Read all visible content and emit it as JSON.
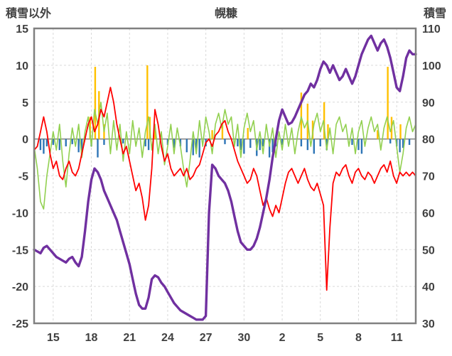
{
  "header": {
    "left_label": "積雪以外",
    "title": "幌糠",
    "right_label": "積雪"
  },
  "chart_data": {
    "type": "line",
    "title": "幌糠",
    "grid": true,
    "legend_position": "none",
    "colors": {
      "grid": "#d9d9d9",
      "zero_line": "#808080",
      "border": "#808080",
      "tick_text": "#404040",
      "background": "#ffffff"
    },
    "left_axis": {
      "label": "積雪以外",
      "min": -25,
      "max": 15,
      "ticks": [
        15,
        10,
        5,
        0,
        -5,
        -10,
        -15,
        -20,
        -25
      ]
    },
    "right_axis": {
      "label": "積雪",
      "min": 30,
      "max": 110,
      "ticks": [
        110,
        100,
        90,
        80,
        70,
        60,
        50,
        40,
        30
      ]
    },
    "x_axis": {
      "min": 13.5,
      "max": 43.5,
      "ticks": [
        {
          "d": 15,
          "label": "15"
        },
        {
          "d": 18,
          "label": "18"
        },
        {
          "d": 21,
          "label": "21"
        },
        {
          "d": 24,
          "label": "24"
        },
        {
          "d": 27,
          "label": "27"
        },
        {
          "d": 30,
          "label": "30"
        },
        {
          "d": 33,
          "label": "2"
        },
        {
          "d": 36,
          "label": "5"
        },
        {
          "d": 39,
          "label": "8"
        },
        {
          "d": 42,
          "label": "11"
        }
      ]
    },
    "bar_series": [
      {
        "name": "blue-bars",
        "axis": "left",
        "color": "#2e75b6",
        "points": [
          [
            14.0,
            -1.5
          ],
          [
            14.25,
            -2
          ],
          [
            14.5,
            -1
          ],
          [
            15.0,
            -0.8
          ],
          [
            15.5,
            -1.5
          ],
          [
            16.0,
            -1
          ],
          [
            16.5,
            -0.7
          ],
          [
            17.0,
            -1.8
          ],
          [
            17.25,
            -2.2
          ],
          [
            18.0,
            -1
          ],
          [
            18.5,
            -2.5
          ],
          [
            19.0,
            -0.8
          ],
          [
            20.5,
            -0.6
          ],
          [
            22.25,
            -1
          ],
          [
            22.5,
            -1.5
          ],
          [
            24.0,
            -0.8
          ],
          [
            24.5,
            -1.2
          ],
          [
            25.0,
            -1
          ],
          [
            25.5,
            -1.8
          ],
          [
            26.0,
            -2.2
          ],
          [
            26.25,
            -1.5
          ],
          [
            26.5,
            -2.5
          ],
          [
            27.0,
            -1
          ],
          [
            28.5,
            -0.7
          ],
          [
            29.5,
            -1
          ],
          [
            29.75,
            -1.5
          ],
          [
            30.0,
            -2
          ],
          [
            30.5,
            -1.2
          ],
          [
            31.0,
            -2.3
          ],
          [
            31.25,
            -1.5
          ],
          [
            31.5,
            -1
          ],
          [
            32.0,
            -2.5
          ],
          [
            32.25,
            -1.8
          ],
          [
            32.5,
            -1
          ],
          [
            33.0,
            -0.8
          ],
          [
            34.5,
            -1
          ],
          [
            35.0,
            -1.5
          ],
          [
            35.5,
            -2
          ],
          [
            36.0,
            -1
          ],
          [
            36.5,
            -1.5
          ],
          [
            38.5,
            -0.8
          ],
          [
            39.0,
            -1.5
          ],
          [
            39.25,
            -2
          ],
          [
            41.5,
            -0.6
          ],
          [
            42.0,
            -1
          ],
          [
            42.25,
            -1.8
          ],
          [
            42.5,
            -1.2
          ],
          [
            43.0,
            -0.8
          ]
        ]
      },
      {
        "name": "orange-bars",
        "axis": "left",
        "color": "#ffc000",
        "points": [
          [
            17.9,
            3
          ],
          [
            18.3,
            9.8
          ],
          [
            18.6,
            6.5
          ],
          [
            19.0,
            2
          ],
          [
            22.4,
            10
          ],
          [
            22.6,
            3
          ],
          [
            23.0,
            1.5
          ],
          [
            27.5,
            1.2
          ],
          [
            28.3,
            2
          ],
          [
            30.3,
            1.5
          ],
          [
            34.5,
            6.3
          ],
          [
            35.0,
            4.8
          ],
          [
            35.4,
            2.5
          ],
          [
            36.3,
            5
          ],
          [
            36.6,
            2
          ],
          [
            40.5,
            1.2
          ],
          [
            41.3,
            9.8
          ],
          [
            41.6,
            3
          ],
          [
            42.3,
            2
          ]
        ]
      }
    ],
    "series": [
      {
        "name": "green-line",
        "axis": "left",
        "color": "#92d050",
        "width": 1.6,
        "start": 13.5,
        "step": 0.25,
        "values": [
          -1,
          -4,
          -8.5,
          -9.5,
          -5,
          -2,
          1,
          -1.5,
          2,
          -3,
          -6.5,
          -2,
          1.5,
          -1,
          2,
          -2.5,
          1,
          3,
          -1,
          4,
          2,
          5,
          1,
          3.5,
          -2,
          2.5,
          -1.5,
          2,
          -3,
          1,
          -2,
          2.5,
          -1,
          1.5,
          -2.5,
          1,
          3,
          -1.5,
          2,
          -2,
          1,
          -3.5,
          -1,
          2,
          -2,
          1.5,
          -1,
          -4,
          -6.5,
          -3,
          1,
          -2,
          2.5,
          -1,
          3,
          1,
          -2,
          2,
          3.5,
          1.5,
          4,
          2,
          3,
          -1,
          2,
          -2.5,
          1.5,
          3.5,
          1,
          2.5,
          -1.5,
          1,
          -2,
          2,
          -1,
          1.5,
          -2.5,
          1,
          -1.5,
          2,
          -1,
          1.5,
          -2,
          1,
          3,
          1.5,
          2.5,
          -1,
          2,
          3.5,
          1,
          2.5,
          -1.5,
          1.5,
          -2,
          2,
          3,
          1,
          2,
          -1,
          1.5,
          -2,
          1,
          2.5,
          -1,
          1.5,
          3,
          1,
          2,
          -1.5,
          1.5,
          3,
          1,
          2.5,
          -1,
          -4.5,
          -2,
          1.5,
          3,
          1,
          2
        ]
      },
      {
        "name": "red-line",
        "axis": "left",
        "color": "#ff0000",
        "width": 1.8,
        "start": 13.5,
        "step": 0.25,
        "values": [
          -1.5,
          -1,
          1,
          3,
          1,
          -2,
          -4,
          -3,
          -5,
          -5.5,
          -4,
          -3,
          -4.5,
          -5,
          -4,
          -2,
          0,
          2,
          3,
          1,
          2,
          4,
          3,
          5,
          7,
          5,
          2,
          0,
          -2,
          -1,
          -3,
          -5,
          -7,
          -6,
          -8,
          -11,
          -9,
          -4,
          4,
          2,
          -1,
          -3,
          -2,
          -4,
          -5,
          -4.5,
          -4,
          -5,
          -4,
          -5.5,
          -5,
          -4,
          -3.5,
          -2,
          -0.5,
          0,
          -1,
          0.5,
          1,
          2,
          2.5,
          1,
          0,
          -1.5,
          -3,
          -4,
          -5,
          -6,
          -5.5,
          -4,
          -5,
          -7,
          -9,
          -8,
          -9.5,
          -10.5,
          -9,
          -10,
          -8,
          -6,
          -4.5,
          -4,
          -5,
          -6,
          -5,
          -4,
          -5.5,
          -6.5,
          -7,
          -6,
          -7.5,
          -9,
          -20.5,
          -12,
          -6,
          -4.5,
          -5,
          -4,
          -3.5,
          -5,
          -6,
          -4.5,
          -4,
          -5,
          -5.5,
          -4.5,
          -5,
          -6,
          -5,
          -4,
          -3.5,
          -4.5,
          -3,
          -5,
          -6,
          -4.5,
          -5,
          -4.5,
          -5,
          -4.5,
          -5
        ]
      },
      {
        "name": "purple-line",
        "axis": "right",
        "color": "#7030a0",
        "width": 3.4,
        "start": 13.5,
        "step": 0.25,
        "values": [
          50,
          49.5,
          49,
          50.5,
          51,
          50,
          49,
          48,
          47.5,
          47,
          46.5,
          47.5,
          48,
          46.5,
          45.5,
          48,
          55,
          63,
          69,
          72,
          71,
          69,
          66,
          64,
          62,
          60,
          58,
          55,
          52,
          49,
          46,
          42,
          38,
          35,
          34,
          34,
          37,
          42,
          43,
          42.5,
          41,
          40,
          38.5,
          37,
          35.5,
          34.5,
          33.5,
          33,
          32.5,
          32,
          31.5,
          31,
          31,
          31,
          32,
          60,
          73,
          72,
          70,
          69,
          68,
          66,
          63,
          59,
          55,
          52,
          51,
          50,
          50,
          51,
          53,
          56,
          60,
          64,
          69,
          75,
          80,
          85,
          88,
          86,
          84,
          84.5,
          86,
          88,
          90,
          92,
          93,
          95,
          94,
          96,
          99,
          101,
          100,
          98,
          100,
          98,
          96,
          97,
          99,
          97,
          95,
          97,
          100,
          103,
          105,
          107,
          108,
          106,
          104,
          106,
          107,
          105,
          102,
          98,
          94,
          93,
          97,
          102,
          104,
          103,
          103
        ]
      }
    ]
  }
}
